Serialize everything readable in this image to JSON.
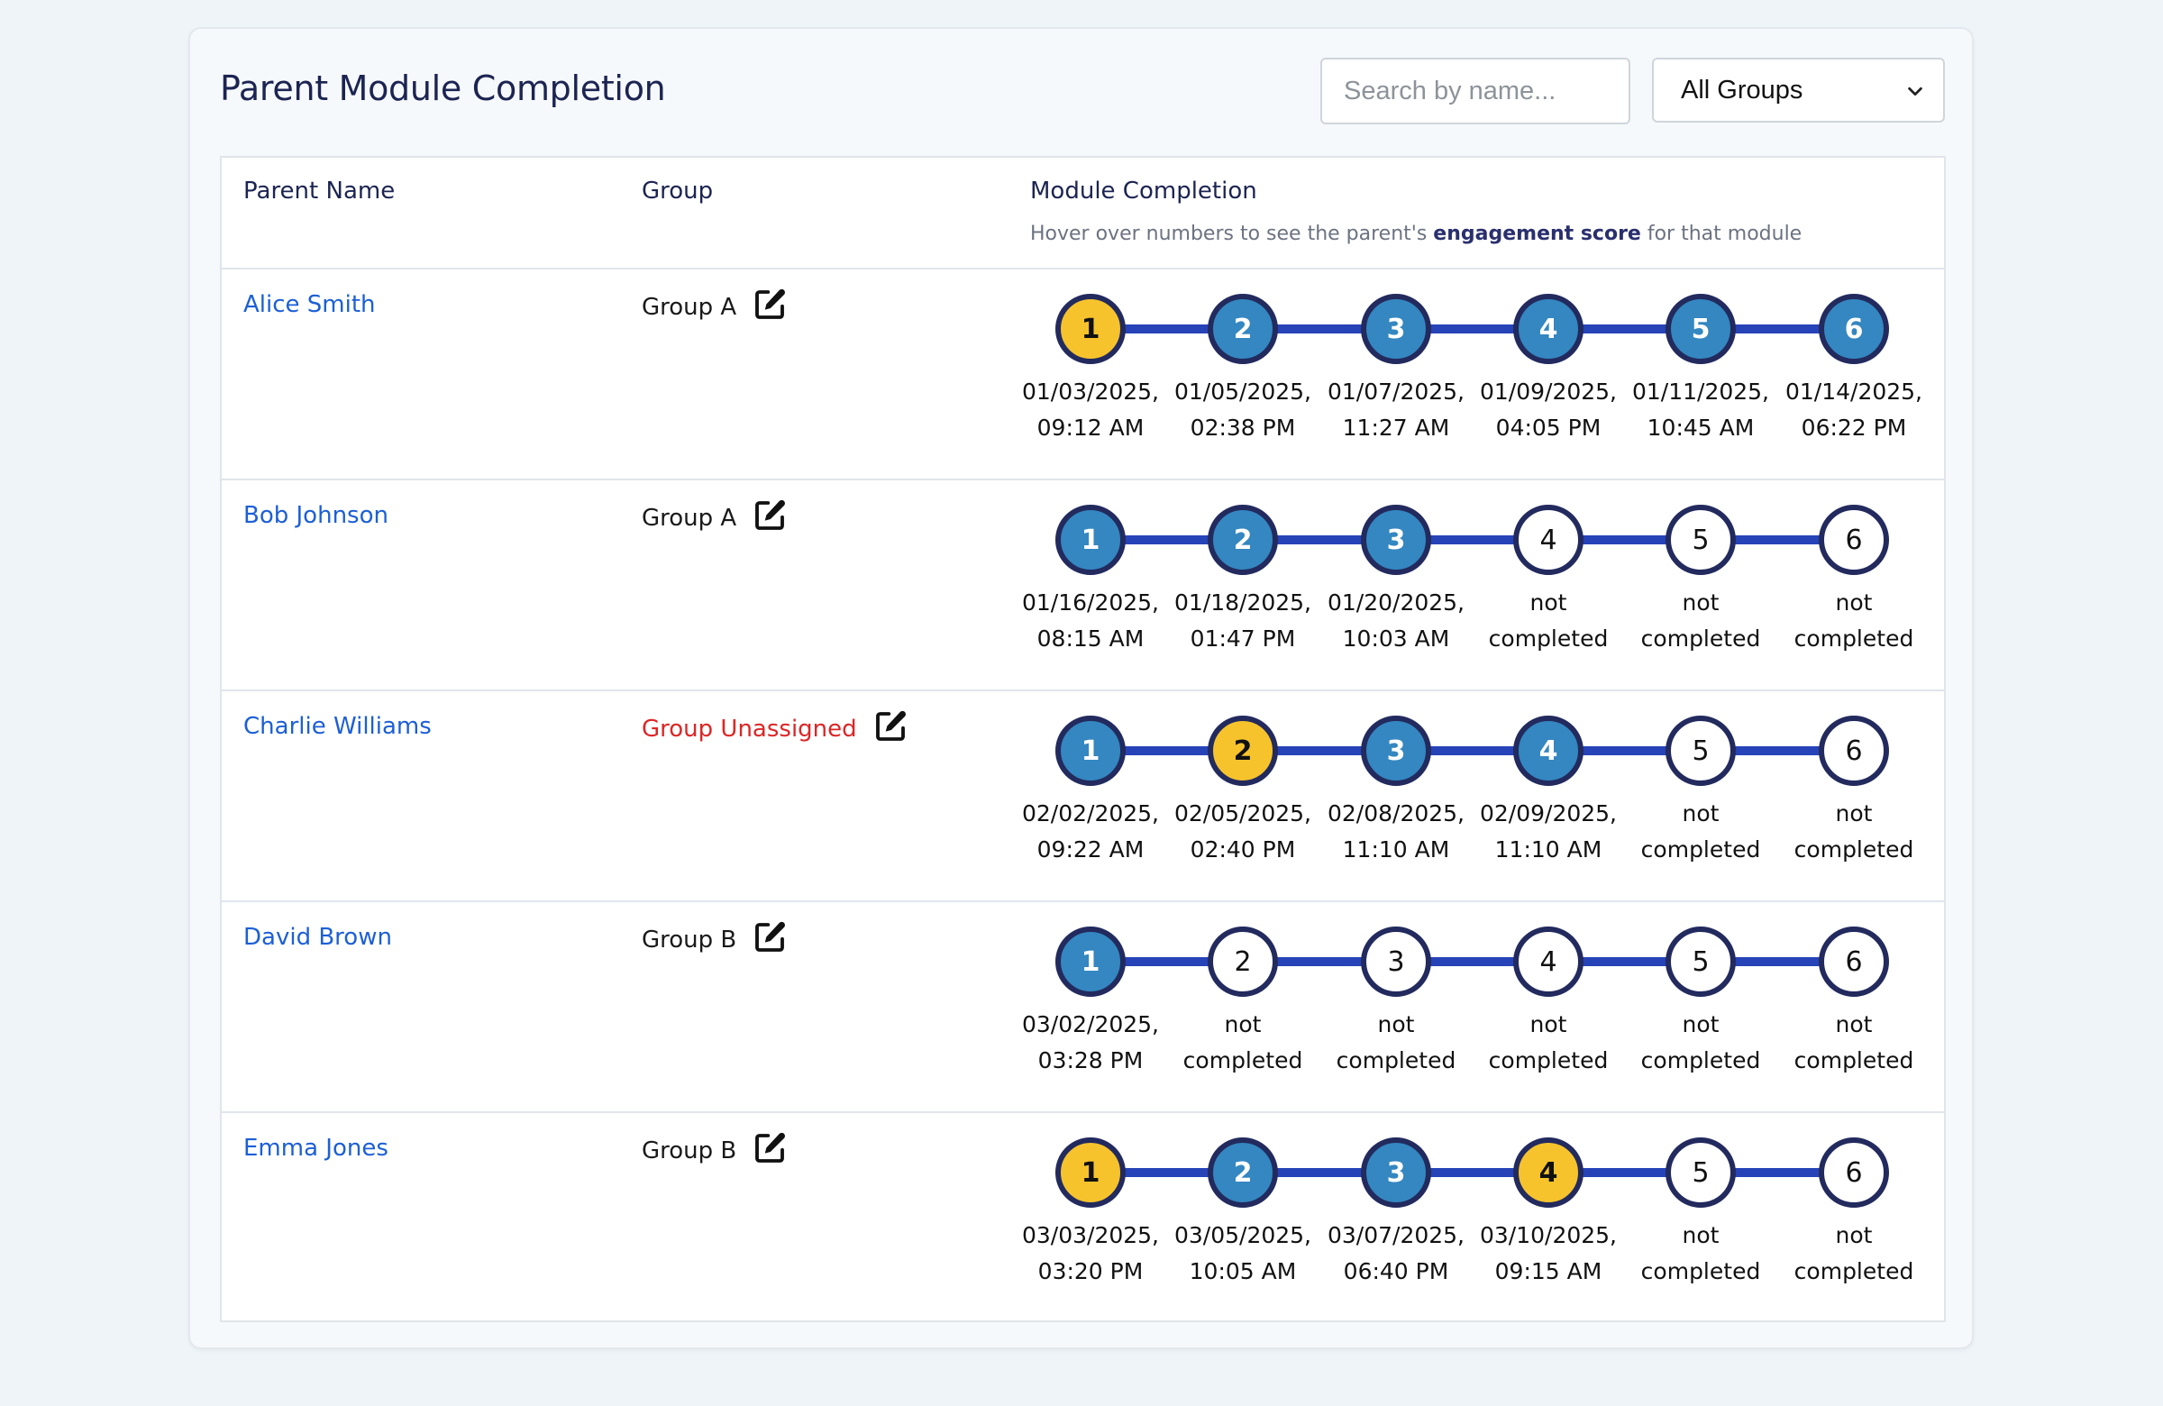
{
  "title": "Parent Module Completion",
  "search": {
    "placeholder": "Search by name...",
    "value": ""
  },
  "group_filter": {
    "selected": "All Groups"
  },
  "columns": {
    "parent_name": "Parent Name",
    "group": "Group",
    "module_completion": "Module Completion",
    "hint_before": "Hover over numbers to see the parent's ",
    "hint_bold": "engagement score",
    "hint_after": " for that module"
  },
  "colors": {
    "completed": "#3487c0",
    "highlight": "#f6c32c",
    "link": "#1c5fd6",
    "unassigned": "#dc2626"
  },
  "rows": [
    {
      "name": "Alice Smith",
      "group": "Group A",
      "unassigned": false,
      "modules": [
        {
          "n": "1",
          "status": "gold",
          "line1": "01/03/2025,",
          "line2": "09:12 AM"
        },
        {
          "n": "2",
          "status": "done",
          "line1": "01/05/2025,",
          "line2": "02:38 PM"
        },
        {
          "n": "3",
          "status": "done",
          "line1": "01/07/2025,",
          "line2": "11:27 AM"
        },
        {
          "n": "4",
          "status": "done",
          "line1": "01/09/2025,",
          "line2": "04:05 PM"
        },
        {
          "n": "5",
          "status": "done",
          "line1": "01/11/2025,",
          "line2": "10:45 AM"
        },
        {
          "n": "6",
          "status": "done",
          "line1": "01/14/2025,",
          "line2": "06:22 PM"
        }
      ]
    },
    {
      "name": "Bob Johnson",
      "group": "Group A",
      "unassigned": false,
      "modules": [
        {
          "n": "1",
          "status": "done",
          "line1": "01/16/2025,",
          "line2": "08:15 AM"
        },
        {
          "n": "2",
          "status": "done",
          "line1": "01/18/2025,",
          "line2": "01:47 PM"
        },
        {
          "n": "3",
          "status": "done",
          "line1": "01/20/2025,",
          "line2": "10:03 AM"
        },
        {
          "n": "4",
          "status": "todo",
          "line1": "not",
          "line2": "completed"
        },
        {
          "n": "5",
          "status": "todo",
          "line1": "not",
          "line2": "completed"
        },
        {
          "n": "6",
          "status": "todo",
          "line1": "not",
          "line2": "completed"
        }
      ]
    },
    {
      "name": "Charlie Williams",
      "group": "Group Unassigned",
      "unassigned": true,
      "modules": [
        {
          "n": "1",
          "status": "done",
          "line1": "02/02/2025,",
          "line2": "09:22 AM"
        },
        {
          "n": "2",
          "status": "gold",
          "line1": "02/05/2025,",
          "line2": "02:40 PM"
        },
        {
          "n": "3",
          "status": "done",
          "line1": "02/08/2025,",
          "line2": "11:10 AM"
        },
        {
          "n": "4",
          "status": "done",
          "line1": "02/09/2025,",
          "line2": "11:10 AM"
        },
        {
          "n": "5",
          "status": "todo",
          "line1": "not",
          "line2": "completed"
        },
        {
          "n": "6",
          "status": "todo",
          "line1": "not",
          "line2": "completed"
        }
      ]
    },
    {
      "name": "David Brown",
      "group": "Group B",
      "unassigned": false,
      "modules": [
        {
          "n": "1",
          "status": "done",
          "line1": "03/02/2025,",
          "line2": "03:28 PM"
        },
        {
          "n": "2",
          "status": "todo",
          "line1": "not",
          "line2": "completed"
        },
        {
          "n": "3",
          "status": "todo",
          "line1": "not",
          "line2": "completed"
        },
        {
          "n": "4",
          "status": "todo",
          "line1": "not",
          "line2": "completed"
        },
        {
          "n": "5",
          "status": "todo",
          "line1": "not",
          "line2": "completed"
        },
        {
          "n": "6",
          "status": "todo",
          "line1": "not",
          "line2": "completed"
        }
      ]
    },
    {
      "name": "Emma Jones",
      "group": "Group B",
      "unassigned": false,
      "modules": [
        {
          "n": "1",
          "status": "gold",
          "line1": "03/03/2025,",
          "line2": "03:20 PM"
        },
        {
          "n": "2",
          "status": "done",
          "line1": "03/05/2025,",
          "line2": "10:05 AM"
        },
        {
          "n": "3",
          "status": "done",
          "line1": "03/07/2025,",
          "line2": "06:40 PM"
        },
        {
          "n": "4",
          "status": "gold",
          "line1": "03/10/2025,",
          "line2": "09:15 AM"
        },
        {
          "n": "5",
          "status": "todo",
          "line1": "not",
          "line2": "completed"
        },
        {
          "n": "6",
          "status": "todo",
          "line1": "not",
          "line2": "completed"
        }
      ]
    }
  ]
}
